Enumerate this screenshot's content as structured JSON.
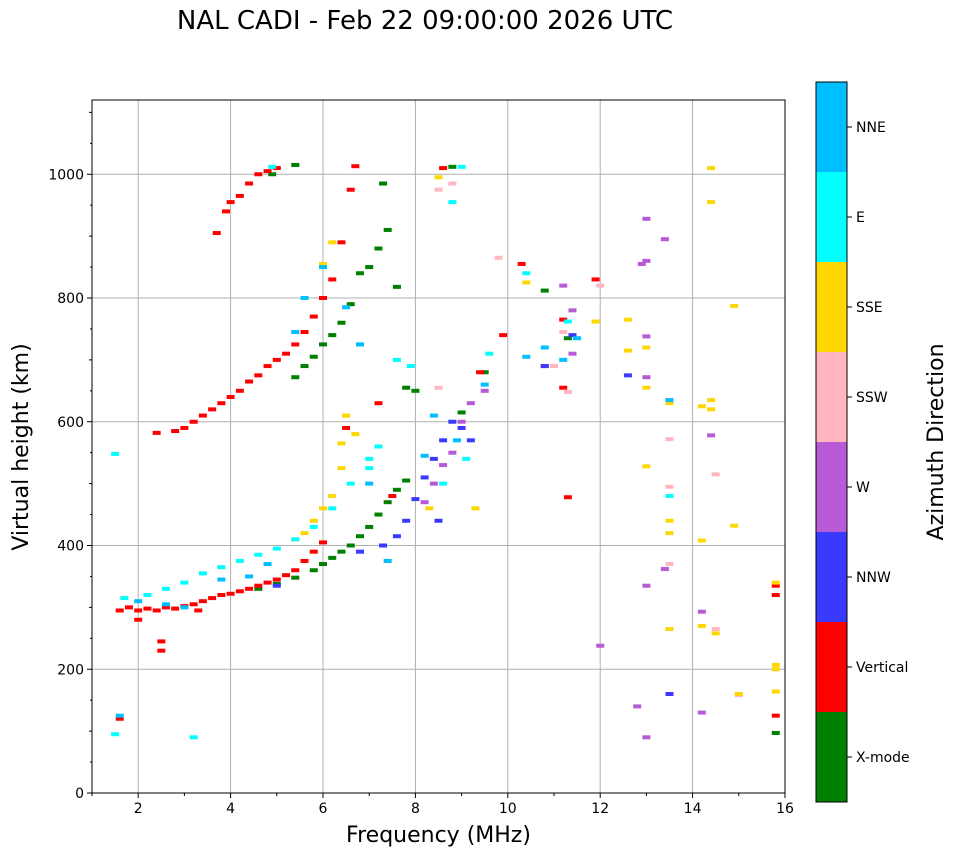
{
  "chart_data": {
    "type": "scatter",
    "title": "NAL CADI - Feb 22 09:00:00 2026 UTC",
    "xlabel": "Frequency (MHz)",
    "ylabel": "Virtual height (km)",
    "xlim": [
      1,
      16
    ],
    "ylim": [
      0,
      1120
    ],
    "xticks": [
      2,
      4,
      6,
      8,
      10,
      12,
      14,
      16
    ],
    "yticks": [
      0,
      200,
      400,
      600,
      800,
      1000
    ],
    "grid": true,
    "colorbar": {
      "label": "Azimuth Direction",
      "placement": "right"
    },
    "series": [
      {
        "name": "X-mode",
        "color": "#008000",
        "points": [
          [
            4.6,
            330
          ],
          [
            5.0,
            338
          ],
          [
            5.4,
            348
          ],
          [
            5.8,
            360
          ],
          [
            6.0,
            370
          ],
          [
            6.2,
            380
          ],
          [
            6.4,
            390
          ],
          [
            6.6,
            400
          ],
          [
            6.8,
            415
          ],
          [
            7.0,
            430
          ],
          [
            7.2,
            450
          ],
          [
            7.4,
            470
          ],
          [
            7.6,
            490
          ],
          [
            7.8,
            505
          ],
          [
            5.4,
            672
          ],
          [
            5.6,
            690
          ],
          [
            5.8,
            705
          ],
          [
            6.0,
            725
          ],
          [
            6.2,
            740
          ],
          [
            6.4,
            760
          ],
          [
            6.6,
            790
          ],
          [
            6.8,
            840
          ],
          [
            7.0,
            850
          ],
          [
            7.2,
            880
          ],
          [
            7.4,
            910
          ],
          [
            4.9,
            1000
          ],
          [
            5.4,
            1015
          ],
          [
            7.3,
            985
          ],
          [
            7.6,
            818
          ],
          [
            7.8,
            655
          ],
          [
            8.0,
            650
          ],
          [
            8.8,
            1012
          ],
          [
            9.0,
            615
          ],
          [
            9.5,
            680
          ],
          [
            10.8,
            812
          ],
          [
            11.3,
            735
          ],
          [
            15.8,
            97
          ]
        ]
      },
      {
        "name": "Vertical",
        "color": "#ff0000",
        "points": [
          [
            1.6,
            295
          ],
          [
            1.8,
            300
          ],
          [
            2.0,
            295
          ],
          [
            2.2,
            298
          ],
          [
            2.4,
            295
          ],
          [
            2.6,
            300
          ],
          [
            2.8,
            298
          ],
          [
            3.0,
            302
          ],
          [
            3.2,
            305
          ],
          [
            3.4,
            310
          ],
          [
            3.6,
            315
          ],
          [
            3.8,
            320
          ],
          [
            4.0,
            322
          ],
          [
            4.2,
            326
          ],
          [
            4.4,
            330
          ],
          [
            4.6,
            335
          ],
          [
            4.8,
            340
          ],
          [
            5.0,
            345
          ],
          [
            5.2,
            352
          ],
          [
            5.4,
            360
          ],
          [
            5.6,
            375
          ],
          [
            5.8,
            390
          ],
          [
            6.0,
            405
          ],
          [
            1.6,
            120
          ],
          [
            2.0,
            280
          ],
          [
            2.5,
            245
          ],
          [
            2.5,
            230
          ],
          [
            3.3,
            295
          ],
          [
            2.4,
            582
          ],
          [
            2.8,
            585
          ],
          [
            3.0,
            590
          ],
          [
            3.2,
            600
          ],
          [
            3.4,
            610
          ],
          [
            3.6,
            620
          ],
          [
            3.8,
            630
          ],
          [
            4.0,
            640
          ],
          [
            4.2,
            650
          ],
          [
            4.4,
            665
          ],
          [
            4.6,
            675
          ],
          [
            4.8,
            690
          ],
          [
            5.0,
            700
          ],
          [
            5.2,
            710
          ],
          [
            5.4,
            725
          ],
          [
            5.6,
            745
          ],
          [
            5.8,
            770
          ],
          [
            6.0,
            800
          ],
          [
            6.2,
            830
          ],
          [
            6.4,
            890
          ],
          [
            3.7,
            905
          ],
          [
            3.9,
            940
          ],
          [
            4.0,
            955
          ],
          [
            4.2,
            965
          ],
          [
            4.4,
            985
          ],
          [
            4.6,
            1000
          ],
          [
            4.8,
            1005
          ],
          [
            5.0,
            1010
          ],
          [
            6.7,
            1013
          ],
          [
            6.6,
            975
          ],
          [
            7.2,
            630
          ],
          [
            7.5,
            480
          ],
          [
            6.5,
            590
          ],
          [
            8.6,
            1010
          ],
          [
            10.3,
            855
          ],
          [
            10.8,
            690
          ],
          [
            11.2,
            765
          ],
          [
            11.3,
            478
          ],
          [
            11.9,
            830
          ],
          [
            15.8,
            335
          ],
          [
            15.8,
            320
          ],
          [
            15.8,
            125
          ],
          [
            9.4,
            680
          ],
          [
            9.9,
            740
          ],
          [
            11.2,
            655
          ]
        ]
      },
      {
        "name": "NNW",
        "color": "#3a3aff",
        "points": [
          [
            7.3,
            400
          ],
          [
            7.6,
            415
          ],
          [
            7.8,
            440
          ],
          [
            8.0,
            475
          ],
          [
            8.2,
            510
          ],
          [
            8.4,
            540
          ],
          [
            8.6,
            570
          ],
          [
            8.8,
            600
          ],
          [
            9.0,
            590
          ],
          [
            9.2,
            570
          ],
          [
            8.5,
            440
          ],
          [
            10.8,
            690
          ],
          [
            11.4,
            740
          ],
          [
            12.6,
            675
          ],
          [
            13.5,
            160
          ],
          [
            6.8,
            390
          ],
          [
            5.0,
            335
          ]
        ]
      },
      {
        "name": "W",
        "color": "#b65ad6",
        "points": [
          [
            8.2,
            470
          ],
          [
            8.4,
            500
          ],
          [
            8.6,
            530
          ],
          [
            8.8,
            550
          ],
          [
            9.0,
            600
          ],
          [
            9.2,
            630
          ],
          [
            9.5,
            650
          ],
          [
            11.2,
            820
          ],
          [
            11.4,
            780
          ],
          [
            11.4,
            710
          ],
          [
            12.9,
            855
          ],
          [
            13.0,
            860
          ],
          [
            13.0,
            928
          ],
          [
            13.0,
            738
          ],
          [
            13.0,
            672
          ],
          [
            13.0,
            335
          ],
          [
            13.4,
            362
          ],
          [
            13.4,
            895
          ],
          [
            14.2,
            293
          ],
          [
            14.2,
            130
          ],
          [
            14.4,
            578
          ],
          [
            12.0,
            238
          ],
          [
            13.0,
            90
          ],
          [
            12.8,
            140
          ]
        ]
      },
      {
        "name": "SSW",
        "color": "#ffb6c1",
        "points": [
          [
            8.5,
            655
          ],
          [
            8.5,
            975
          ],
          [
            8.8,
            985
          ],
          [
            9.8,
            865
          ],
          [
            11.0,
            690
          ],
          [
            11.2,
            745
          ],
          [
            11.3,
            648
          ],
          [
            13.5,
            572
          ],
          [
            13.5,
            495
          ],
          [
            13.5,
            370
          ],
          [
            14.5,
            515
          ],
          [
            14.5,
            265
          ],
          [
            12.0,
            820
          ],
          [
            15.0,
            158
          ]
        ]
      },
      {
        "name": "SSE",
        "color": "#ffd700",
        "points": [
          [
            5.4,
            410
          ],
          [
            5.6,
            420
          ],
          [
            5.8,
            440
          ],
          [
            6.0,
            460
          ],
          [
            6.2,
            480
          ],
          [
            6.4,
            525
          ],
          [
            6.4,
            565
          ],
          [
            6.5,
            610
          ],
          [
            6.7,
            580
          ],
          [
            6.2,
            890
          ],
          [
            6.0,
            855
          ],
          [
            8.5,
            995
          ],
          [
            8.3,
            460
          ],
          [
            9.3,
            460
          ],
          [
            10.4,
            825
          ],
          [
            11.9,
            762
          ],
          [
            12.6,
            765
          ],
          [
            12.6,
            715
          ],
          [
            13.0,
            720
          ],
          [
            13.0,
            655
          ],
          [
            13.0,
            528
          ],
          [
            13.5,
            630
          ],
          [
            13.5,
            440
          ],
          [
            13.5,
            420
          ],
          [
            13.5,
            265
          ],
          [
            14.2,
            625
          ],
          [
            14.2,
            270
          ],
          [
            14.2,
            408
          ],
          [
            14.4,
            635
          ],
          [
            14.4,
            620
          ],
          [
            14.4,
            1010
          ],
          [
            14.4,
            955
          ],
          [
            14.5,
            258
          ],
          [
            14.9,
            787
          ],
          [
            14.9,
            432
          ],
          [
            15.0,
            160
          ],
          [
            15.8,
            207
          ],
          [
            15.8,
            200
          ],
          [
            15.8,
            164
          ],
          [
            15.8,
            340
          ]
        ]
      },
      {
        "name": "E",
        "color": "#00ffff",
        "points": [
          [
            1.5,
            548
          ],
          [
            1.5,
            95
          ],
          [
            1.7,
            315
          ],
          [
            2.2,
            320
          ],
          [
            2.6,
            330
          ],
          [
            3.0,
            340
          ],
          [
            3.4,
            355
          ],
          [
            3.8,
            365
          ],
          [
            4.2,
            375
          ],
          [
            4.6,
            385
          ],
          [
            5.0,
            395
          ],
          [
            5.4,
            410
          ],
          [
            5.8,
            430
          ],
          [
            6.2,
            460
          ],
          [
            6.6,
            500
          ],
          [
            7.0,
            540
          ],
          [
            7.2,
            560
          ],
          [
            3.2,
            90
          ],
          [
            4.9,
            1012
          ],
          [
            9.0,
            1012
          ],
          [
            8.8,
            955
          ],
          [
            7.6,
            700
          ],
          [
            7.9,
            690
          ],
          [
            8.6,
            500
          ],
          [
            9.1,
            540
          ],
          [
            9.6,
            710
          ],
          [
            10.4,
            840
          ],
          [
            11.3,
            762
          ],
          [
            13.5,
            480
          ],
          [
            6.8,
            725
          ],
          [
            7.0,
            525
          ]
        ]
      },
      {
        "name": "NNE",
        "color": "#00bfff",
        "points": [
          [
            1.6,
            125
          ],
          [
            2.0,
            310
          ],
          [
            2.6,
            305
          ],
          [
            3.0,
            300
          ],
          [
            3.8,
            345
          ],
          [
            4.4,
            350
          ],
          [
            4.8,
            370
          ],
          [
            5.4,
            745
          ],
          [
            5.6,
            800
          ],
          [
            6.0,
            850
          ],
          [
            6.5,
            785
          ],
          [
            6.8,
            725
          ],
          [
            7.0,
            500
          ],
          [
            7.4,
            375
          ],
          [
            8.2,
            545
          ],
          [
            8.4,
            610
          ],
          [
            8.9,
            570
          ],
          [
            9.5,
            660
          ],
          [
            10.4,
            705
          ],
          [
            10.8,
            720
          ],
          [
            11.2,
            700
          ],
          [
            11.5,
            735
          ],
          [
            13.5,
            635
          ]
        ]
      }
    ]
  }
}
